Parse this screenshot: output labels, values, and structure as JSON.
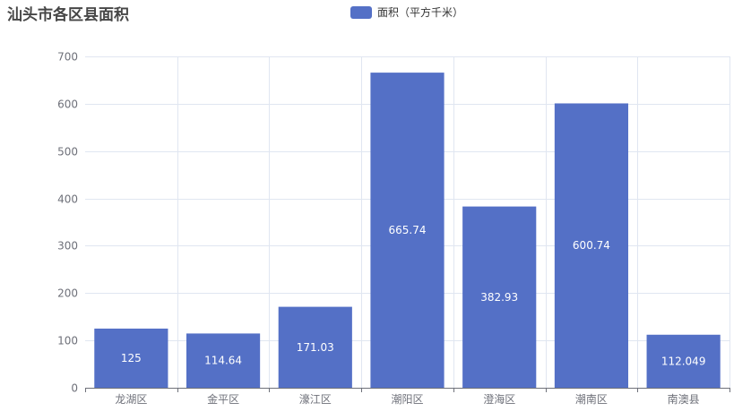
{
  "chart_data": {
    "type": "bar",
    "title": "汕头市各区县面积",
    "categories": [
      "龙湖区",
      "金平区",
      "濠江区",
      "潮阳区",
      "澄海区",
      "潮南区",
      "南澳县"
    ],
    "series": [
      {
        "name": "面积（平方千米）",
        "values": [
          125,
          114.64,
          171.03,
          665.74,
          382.93,
          600.74,
          112.049
        ],
        "labels": [
          "125",
          "114.64",
          "171.03",
          "665.74",
          "382.93",
          "600.74",
          "112.049"
        ],
        "color": "#5470c6"
      }
    ],
    "y_ticks": [
      "0",
      "100",
      "200",
      "300",
      "400",
      "500",
      "600",
      "700"
    ],
    "ylim": [
      0,
      700
    ],
    "grid": true,
    "legend_position": "top-center"
  }
}
